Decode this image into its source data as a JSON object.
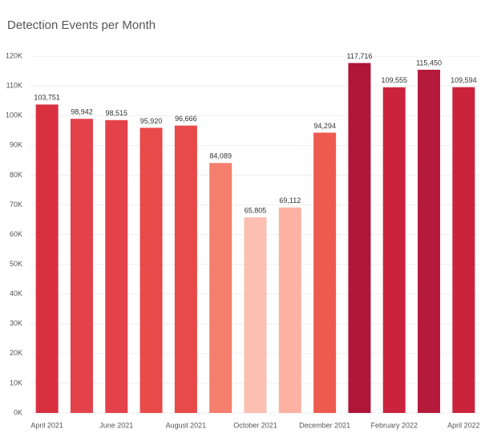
{
  "chart_data": {
    "type": "bar",
    "title": "Detection Events per Month",
    "categories": [
      "April 2021",
      null,
      "June 2021",
      null,
      "August 2021",
      null,
      "October 2021",
      null,
      "December 2021",
      null,
      "February 2022",
      null,
      "April 2022"
    ],
    "values": [
      103751,
      98942,
      98515,
      95920,
      96666,
      84089,
      65805,
      69112,
      94294,
      117716,
      109555,
      115450,
      109594
    ],
    "value_labels": [
      "103,751",
      "98,942",
      "98,515",
      "95,920",
      "96,666",
      "84,089",
      "65,805",
      "69,112",
      "94,294",
      "117,716",
      "109,555",
      "115,450",
      "109,594"
    ],
    "colors": [
      "#d9303f",
      "#e4424a",
      "#e4424a",
      "#e84a4a",
      "#e84a4a",
      "#f47f6c",
      "#fcbfb2",
      "#fbb2a3",
      "#ef5a4f",
      "#b0153a",
      "#cc233d",
      "#b61a3b",
      "#cc233d"
    ],
    "ylim": [
      0,
      123000
    ],
    "yticks": [
      {
        "value": 0,
        "label": "0K"
      },
      {
        "value": 10000,
        "label": "10K"
      },
      {
        "value": 20000,
        "label": "20K"
      },
      {
        "value": 30000,
        "label": "30K"
      },
      {
        "value": 40000,
        "label": "40K"
      },
      {
        "value": 50000,
        "label": "50K"
      },
      {
        "value": 60000,
        "label": "60K"
      },
      {
        "value": 70000,
        "label": "70K"
      },
      {
        "value": 80000,
        "label": "80K"
      },
      {
        "value": 90000,
        "label": "90K"
      },
      {
        "value": 100000,
        "label": "100K"
      },
      {
        "value": 110000,
        "label": "110K"
      },
      {
        "value": 120000,
        "label": "120K"
      }
    ],
    "grid": true
  }
}
